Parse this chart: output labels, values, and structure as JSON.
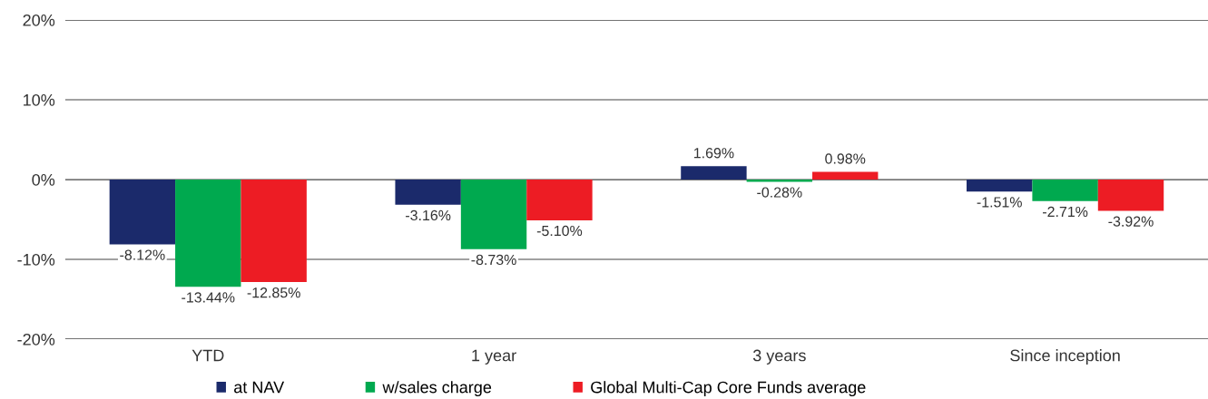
{
  "chart_data": {
    "type": "bar",
    "categories": [
      "YTD",
      "1 year",
      "3 years",
      "Since inception"
    ],
    "series": [
      {
        "name": "at NAV",
        "color": "#1b2a6b",
        "values": [
          -8.12,
          -3.16,
          1.69,
          -1.51
        ],
        "value_labels": [
          "-8.12%",
          "-3.16%",
          "1.69%",
          "-1.51%"
        ]
      },
      {
        "name": "w/sales charge",
        "color": "#00a94f",
        "values": [
          -13.44,
          -8.73,
          -0.28,
          -2.71
        ],
        "value_labels": [
          "-13.44%",
          "-8.73%",
          "-0.28%",
          "-2.71%"
        ]
      },
      {
        "name": "Global Multi-Cap Core Funds average",
        "color": "#ed1c24",
        "values": [
          -12.85,
          -5.1,
          0.98,
          -3.92
        ],
        "value_labels": [
          "-12.85%",
          "-5.10%",
          "0.98%",
          "-3.92%"
        ]
      }
    ],
    "ylim": [
      -20,
      20
    ],
    "yticks": [
      {
        "value": -20,
        "label": "-20%"
      },
      {
        "value": -10,
        "label": "-10%"
      },
      {
        "value": 0,
        "label": "0%"
      },
      {
        "value": 10,
        "label": "10%"
      },
      {
        "value": 20,
        "label": "20%"
      }
    ],
    "grid": "y",
    "legend": "bottom"
  }
}
